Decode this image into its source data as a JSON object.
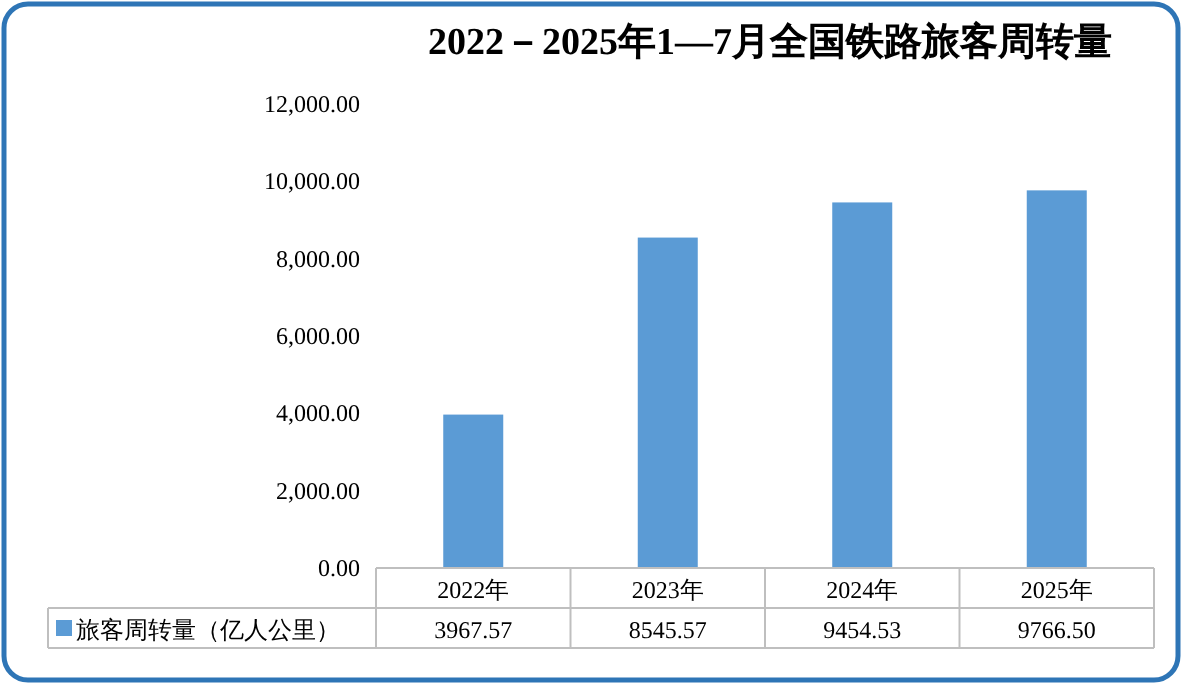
{
  "chart_data": {
    "type": "bar",
    "title": "2022－2025年1—7月全国铁路旅客周转量",
    "categories": [
      "2022年",
      "2023年",
      "2024年",
      "2025年"
    ],
    "series": [
      {
        "name": "旅客周转量（亿人公里）",
        "color": "#5b9bd5",
        "values": [
          3967.57,
          8545.57,
          9454.53,
          9766.5
        ],
        "value_labels": [
          "3967.57",
          "8545.57",
          "9454.53",
          "9766.50"
        ]
      }
    ],
    "ylim": [
      0,
      12000
    ],
    "yticks": [
      {
        "value": 0,
        "label": "0.00"
      },
      {
        "value": 2000,
        "label": "2,000.00"
      },
      {
        "value": 4000,
        "label": "4,000.00"
      },
      {
        "value": 6000,
        "label": "6,000.00"
      },
      {
        "value": 8000,
        "label": "8,000.00"
      },
      {
        "value": 10000,
        "label": "10,000.00"
      },
      {
        "value": 12000,
        "label": "12,000.00"
      }
    ],
    "legend": "bottom"
  }
}
